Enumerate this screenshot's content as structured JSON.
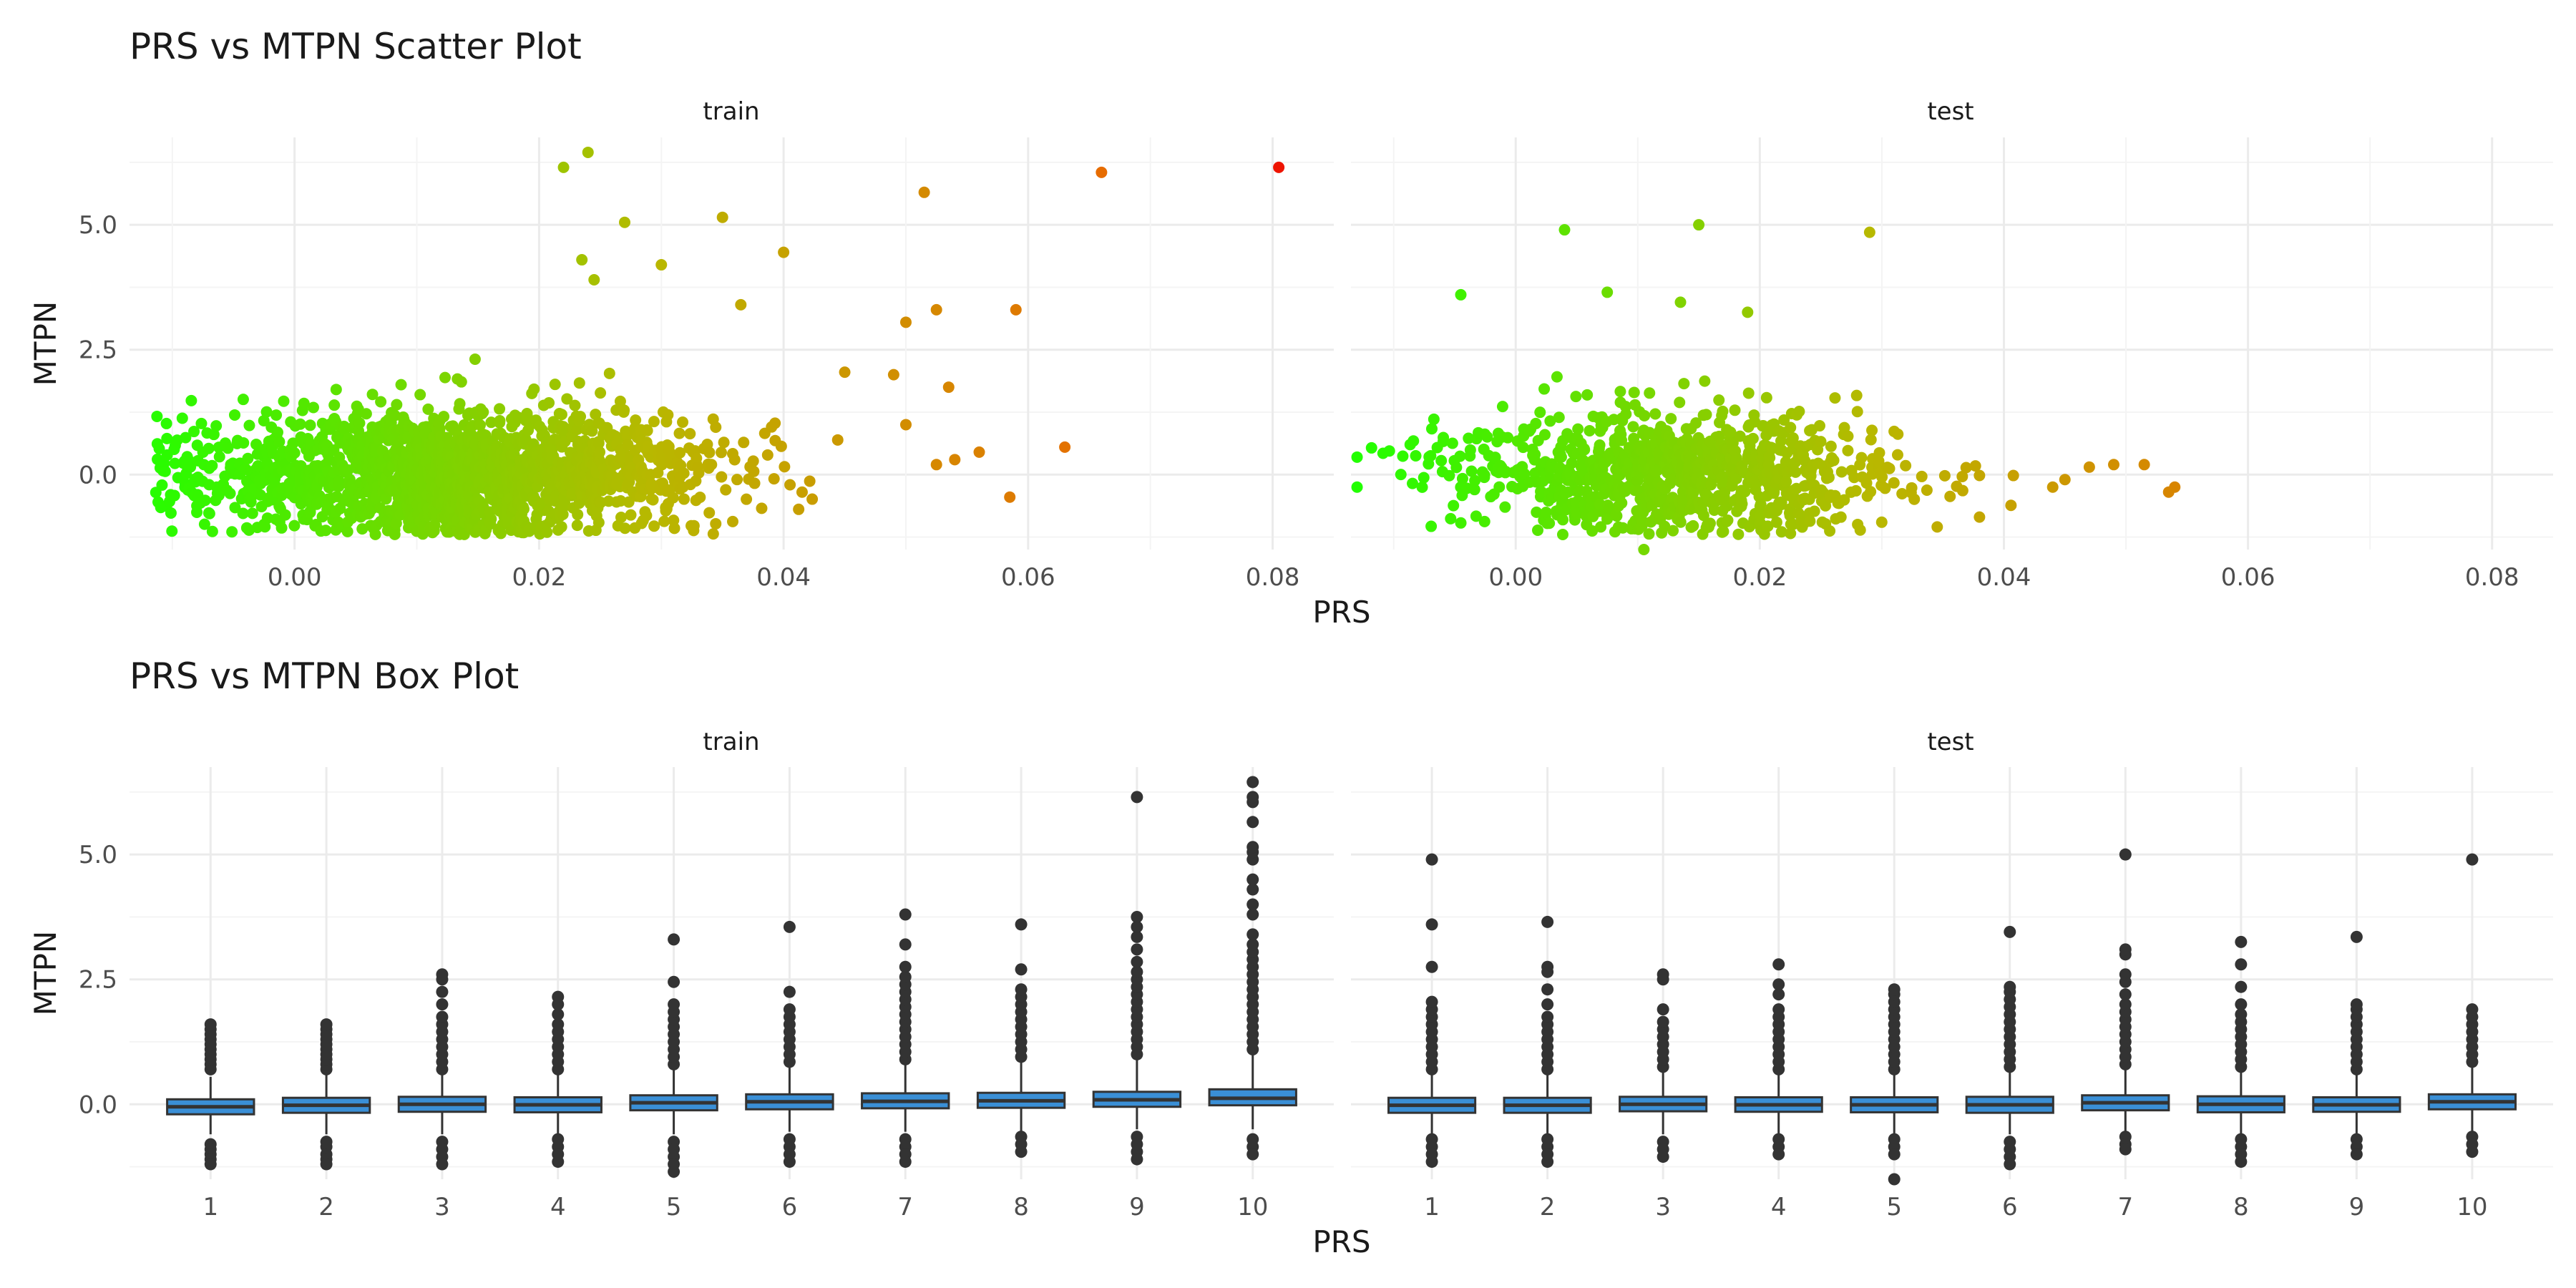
{
  "colors": {
    "background": "#ffffff",
    "grid_major": "#ebebeb",
    "grid_minor": "#f4f4f4",
    "text_dark": "#1a1a1a",
    "text_tick": "#4d4d4d",
    "box_fill": "#3a8fd6",
    "box_line": "#333333",
    "outlier": "#333333",
    "gradient_low": "#22ff00",
    "gradient_mid": "#b8b800",
    "gradient_high": "#e86a00",
    "gradient_max": "#ee1100"
  },
  "chart_data": [
    {
      "type": "scatter",
      "title": "PRS vs MTPN Scatter Plot",
      "xlabel": "PRS",
      "ylabel": "MTPN",
      "facets": [
        "train",
        "test"
      ],
      "xlim": [
        -0.0135,
        0.085
      ],
      "ylim": [
        -1.5,
        6.75
      ],
      "xticks": [
        0.0,
        0.02,
        0.04,
        0.06,
        0.08
      ],
      "xtick_labels": [
        "0.00",
        "0.02",
        "0.04",
        "0.06",
        "0.08"
      ],
      "yticks": [
        0.0,
        2.5,
        5.0
      ],
      "ytick_labels": [
        "0.0",
        "2.5",
        "5.0"
      ],
      "grid": true,
      "color_by": "PRS",
      "train_outliers": [
        {
          "x": 0.022,
          "y": 6.15
        },
        {
          "x": 0.024,
          "y": 6.45
        },
        {
          "x": 0.066,
          "y": 6.05
        },
        {
          "x": 0.0805,
          "y": 6.15
        },
        {
          "x": 0.0515,
          "y": 5.65
        },
        {
          "x": 0.035,
          "y": 5.15
        },
        {
          "x": 0.027,
          "y": 5.05
        },
        {
          "x": 0.04,
          "y": 4.45
        },
        {
          "x": 0.0235,
          "y": 4.3
        },
        {
          "x": 0.03,
          "y": 4.2
        },
        {
          "x": 0.0245,
          "y": 3.9
        },
        {
          "x": 0.0365,
          "y": 3.4
        },
        {
          "x": 0.05,
          "y": 3.05
        },
        {
          "x": 0.0525,
          "y": 3.3
        },
        {
          "x": 0.059,
          "y": 3.3
        },
        {
          "x": 0.0535,
          "y": 1.75
        },
        {
          "x": 0.049,
          "y": 2.0
        },
        {
          "x": 0.045,
          "y": 2.05
        },
        {
          "x": 0.063,
          "y": 0.55
        },
        {
          "x": 0.0585,
          "y": -0.45
        },
        {
          "x": 0.05,
          "y": 1.0
        },
        {
          "x": 0.056,
          "y": 0.45
        },
        {
          "x": 0.054,
          "y": 0.3
        },
        {
          "x": 0.0525,
          "y": 0.2
        }
      ],
      "test_outliers": [
        {
          "x": 0.004,
          "y": 4.9
        },
        {
          "x": 0.015,
          "y": 5.0
        },
        {
          "x": 0.029,
          "y": 4.85
        },
        {
          "x": -0.0045,
          "y": 3.6
        },
        {
          "x": 0.0075,
          "y": 3.65
        },
        {
          "x": 0.0135,
          "y": 3.45
        },
        {
          "x": 0.019,
          "y": 3.25
        },
        {
          "x": -0.013,
          "y": 0.35
        },
        {
          "x": -0.013,
          "y": -0.25
        },
        {
          "x": 0.054,
          "y": -0.25
        },
        {
          "x": 0.0535,
          "y": -0.35
        },
        {
          "x": 0.0515,
          "y": 0.2
        },
        {
          "x": 0.049,
          "y": 0.2
        },
        {
          "x": 0.047,
          "y": 0.15
        },
        {
          "x": 0.045,
          "y": -0.1
        },
        {
          "x": 0.044,
          "y": -0.25
        },
        {
          "x": 0.0105,
          "y": -1.5
        },
        {
          "x": 0.038,
          "y": -0.85
        }
      ]
    },
    {
      "type": "box",
      "title": "PRS vs MTPN Box Plot",
      "xlabel": "PRS",
      "ylabel": "MTPN",
      "facets": [
        "train",
        "test"
      ],
      "categories": [
        "1",
        "2",
        "3",
        "4",
        "5",
        "6",
        "7",
        "8",
        "9",
        "10"
      ],
      "ylim": [
        -1.5,
        6.75
      ],
      "yticks": [
        0.0,
        2.5,
        5.0
      ],
      "ytick_labels": [
        "0.0",
        "2.5",
        "5.0"
      ],
      "grid": true,
      "series": [
        {
          "facet": "train",
          "boxes": [
            {
              "q1": -0.2,
              "median": -0.05,
              "q3": 0.1,
              "lower": -0.6,
              "upper": 0.55,
              "outliers_high": [
                0.7,
                0.8,
                0.9,
                1.0,
                1.1,
                1.2,
                1.3,
                1.4,
                1.5,
                1.6
              ],
              "outliers_low": [
                -0.8,
                -0.9,
                -1.0,
                -1.1,
                -1.2
              ]
            },
            {
              "q1": -0.17,
              "median": -0.02,
              "q3": 0.13,
              "lower": -0.6,
              "upper": 0.6,
              "outliers_high": [
                0.7,
                0.8,
                0.9,
                1.0,
                1.1,
                1.2,
                1.3,
                1.4,
                1.5,
                1.6
              ],
              "outliers_low": [
                -0.75,
                -0.85,
                -1.0,
                -1.1,
                -1.2
              ]
            },
            {
              "q1": -0.15,
              "median": 0.0,
              "q3": 0.15,
              "lower": -0.6,
              "upper": 0.65,
              "outliers_high": [
                0.7,
                0.85,
                1.0,
                1.15,
                1.3,
                1.45,
                1.6,
                1.75,
                2.0,
                2.25,
                2.5,
                2.6
              ],
              "outliers_low": [
                -0.75,
                -0.9,
                -1.05,
                -1.2
              ]
            },
            {
              "q1": -0.16,
              "median": -0.01,
              "q3": 0.14,
              "lower": -0.6,
              "upper": 0.6,
              "outliers_high": [
                0.7,
                0.85,
                1.0,
                1.15,
                1.3,
                1.45,
                1.6,
                1.8,
                2.0,
                2.15
              ],
              "outliers_low": [
                -0.7,
                -0.85,
                -1.0,
                -1.15
              ]
            },
            {
              "q1": -0.12,
              "median": 0.03,
              "q3": 0.18,
              "lower": -0.6,
              "upper": 0.7,
              "outliers_high": [
                0.8,
                0.95,
                1.1,
                1.25,
                1.4,
                1.55,
                1.7,
                1.85,
                2.0,
                2.45,
                3.3
              ],
              "outliers_low": [
                -0.75,
                -0.9,
                -1.05,
                -1.2,
                -1.35
              ]
            },
            {
              "q1": -0.1,
              "median": 0.05,
              "q3": 0.2,
              "lower": -0.55,
              "upper": 0.75,
              "outliers_high": [
                0.85,
                1.0,
                1.15,
                1.3,
                1.45,
                1.6,
                1.75,
                1.9,
                2.25,
                3.55
              ],
              "outliers_low": [
                -0.7,
                -0.85,
                -1.0,
                -1.15
              ]
            },
            {
              "q1": -0.08,
              "median": 0.06,
              "q3": 0.22,
              "lower": -0.55,
              "upper": 0.8,
              "outliers_high": [
                0.9,
                1.05,
                1.2,
                1.35,
                1.5,
                1.65,
                1.8,
                1.95,
                2.1,
                2.25,
                2.4,
                2.55,
                2.75,
                3.2,
                3.8
              ],
              "outliers_low": [
                -0.7,
                -0.85,
                -1.0,
                -1.15
              ]
            },
            {
              "q1": -0.07,
              "median": 0.07,
              "q3": 0.23,
              "lower": -0.55,
              "upper": 0.85,
              "outliers_high": [
                0.95,
                1.1,
                1.25,
                1.4,
                1.55,
                1.7,
                1.85,
                2.0,
                2.15,
                2.3,
                2.7,
                3.6
              ],
              "outliers_low": [
                -0.65,
                -0.8,
                -0.95
              ]
            },
            {
              "q1": -0.05,
              "median": 0.09,
              "q3": 0.25,
              "lower": -0.5,
              "upper": 0.9,
              "outliers_high": [
                1.0,
                1.15,
                1.3,
                1.45,
                1.6,
                1.75,
                1.9,
                2.05,
                2.2,
                2.35,
                2.5,
                2.65,
                2.85,
                3.1,
                3.35,
                3.55,
                3.75,
                6.15
              ],
              "outliers_low": [
                -0.65,
                -0.8,
                -0.95,
                -1.1
              ]
            },
            {
              "q1": -0.02,
              "median": 0.12,
              "q3": 0.3,
              "lower": -0.5,
              "upper": 1.0,
              "outliers_high": [
                1.1,
                1.25,
                1.4,
                1.55,
                1.7,
                1.85,
                2.0,
                2.15,
                2.3,
                2.45,
                2.6,
                2.75,
                2.9,
                3.05,
                3.2,
                3.4,
                3.8,
                4.0,
                4.3,
                4.5,
                4.9,
                5.05,
                5.15,
                5.65,
                6.05,
                6.15,
                6.45
              ],
              "outliers_low": [
                -0.7,
                -0.85,
                -1.0
              ]
            }
          ]
        },
        {
          "facet": "test",
          "boxes": [
            {
              "q1": -0.17,
              "median": -0.02,
              "q3": 0.13,
              "lower": -0.6,
              "upper": 0.6,
              "outliers_high": [
                0.7,
                0.85,
                1.0,
                1.15,
                1.3,
                1.45,
                1.6,
                1.75,
                1.9,
                2.05,
                2.75,
                3.6,
                4.9
              ],
              "outliers_low": [
                -0.7,
                -0.85,
                -1.0,
                -1.15
              ]
            },
            {
              "q1": -0.17,
              "median": -0.02,
              "q3": 0.13,
              "lower": -0.6,
              "upper": 0.6,
              "outliers_high": [
                0.7,
                0.85,
                1.0,
                1.15,
                1.3,
                1.45,
                1.6,
                1.75,
                2.0,
                2.3,
                2.65,
                2.75,
                3.65
              ],
              "outliers_low": [
                -0.7,
                -0.85,
                -1.0,
                -1.15
              ]
            },
            {
              "q1": -0.14,
              "median": 0.0,
              "q3": 0.15,
              "lower": -0.6,
              "upper": 0.65,
              "outliers_high": [
                0.75,
                0.9,
                1.05,
                1.2,
                1.35,
                1.5,
                1.65,
                1.9,
                2.5,
                2.6
              ],
              "outliers_low": [
                -0.75,
                -0.9,
                -1.05
              ]
            },
            {
              "q1": -0.15,
              "median": -0.01,
              "q3": 0.14,
              "lower": -0.6,
              "upper": 0.6,
              "outliers_high": [
                0.7,
                0.85,
                1.0,
                1.15,
                1.3,
                1.45,
                1.6,
                1.75,
                1.9,
                2.2,
                2.4,
                2.8
              ],
              "outliers_low": [
                -0.7,
                -0.85,
                -1.0
              ]
            },
            {
              "q1": -0.16,
              "median": -0.01,
              "q3": 0.14,
              "lower": -0.6,
              "upper": 0.6,
              "outliers_high": [
                0.7,
                0.85,
                1.0,
                1.15,
                1.3,
                1.45,
                1.6,
                1.75,
                1.9,
                2.05,
                2.2,
                2.3
              ],
              "outliers_low": [
                -0.7,
                -0.85,
                -1.0,
                -1.5
              ]
            },
            {
              "q1": -0.17,
              "median": -0.01,
              "q3": 0.15,
              "lower": -0.6,
              "upper": 0.65,
              "outliers_high": [
                0.75,
                0.9,
                1.05,
                1.2,
                1.35,
                1.5,
                1.65,
                1.8,
                1.95,
                2.1,
                2.25,
                2.35,
                3.45
              ],
              "outliers_low": [
                -0.75,
                -0.9,
                -1.05,
                -1.2
              ]
            },
            {
              "q1": -0.12,
              "median": 0.03,
              "q3": 0.18,
              "lower": -0.55,
              "upper": 0.7,
              "outliers_high": [
                0.8,
                0.95,
                1.1,
                1.25,
                1.4,
                1.55,
                1.7,
                1.85,
                2.0,
                2.2,
                2.45,
                2.6,
                3.0,
                3.1,
                5.0
              ],
              "outliers_low": [
                -0.65,
                -0.8,
                -0.9
              ]
            },
            {
              "q1": -0.16,
              "median": 0.0,
              "q3": 0.16,
              "lower": -0.6,
              "upper": 0.65,
              "outliers_high": [
                0.75,
                0.9,
                1.05,
                1.2,
                1.35,
                1.5,
                1.65,
                1.8,
                2.0,
                2.35,
                2.8,
                3.25
              ],
              "outliers_low": [
                -0.7,
                -0.85,
                -1.0,
                -1.15
              ]
            },
            {
              "q1": -0.15,
              "median": -0.01,
              "q3": 0.14,
              "lower": -0.6,
              "upper": 0.6,
              "outliers_high": [
                0.7,
                0.85,
                1.0,
                1.15,
                1.3,
                1.45,
                1.6,
                1.75,
                1.9,
                2.0,
                3.35
              ],
              "outliers_low": [
                -0.7,
                -0.85,
                -1.0
              ]
            },
            {
              "q1": -0.1,
              "median": 0.05,
              "q3": 0.2,
              "lower": -0.55,
              "upper": 0.75,
              "outliers_high": [
                0.85,
                1.0,
                1.15,
                1.3,
                1.45,
                1.6,
                1.75,
                1.9,
                4.9
              ],
              "outliers_low": [
                -0.65,
                -0.8,
                -0.95
              ]
            }
          ]
        }
      ]
    }
  ]
}
